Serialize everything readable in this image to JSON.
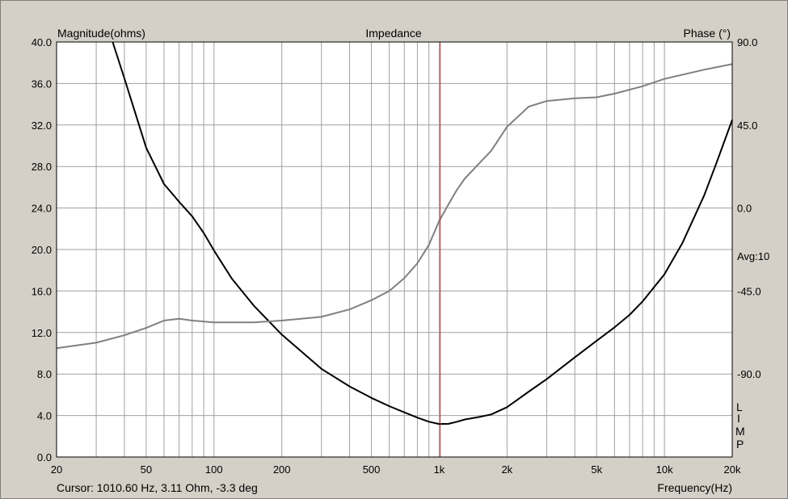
{
  "chart_data": {
    "type": "line",
    "title": "Impedance",
    "ylabel_left": "Magnitude(ohms)",
    "ylabel_right": "Phase (°)",
    "xlabel": "Frequency(Hz)",
    "xscale": "log",
    "xlim": [
      20,
      20000
    ],
    "ylim_left": [
      0,
      40
    ],
    "ylim_right": [
      -135,
      90
    ],
    "grid": true,
    "x_ticks": [
      {
        "value": 20,
        "label": "20"
      },
      {
        "value": 50,
        "label": "50"
      },
      {
        "value": 100,
        "label": "100"
      },
      {
        "value": 200,
        "label": "200"
      },
      {
        "value": 500,
        "label": "500"
      },
      {
        "value": 1000,
        "label": "1k"
      },
      {
        "value": 2000,
        "label": "2k"
      },
      {
        "value": 5000,
        "label": "5k"
      },
      {
        "value": 10000,
        "label": "10k"
      },
      {
        "value": 20000,
        "label": "20k"
      }
    ],
    "y_left_ticks": [
      "0.0",
      "4.0",
      "8.0",
      "12.0",
      "16.0",
      "20.0",
      "24.0",
      "28.0",
      "32.0",
      "36.0",
      "40.0"
    ],
    "y_right_ticks": [
      {
        "value": -90,
        "label": "-90.0"
      },
      {
        "value": -45,
        "label": "-45.0"
      },
      {
        "value": 0,
        "label": "0.0"
      },
      {
        "value": 45,
        "label": "45.0"
      },
      {
        "value": 90,
        "label": "90.0"
      }
    ],
    "series": [
      {
        "axis": "left",
        "color": "#000000",
        "x": [
          35.5,
          40,
          50,
          60,
          70,
          80,
          90,
          100,
          120,
          150,
          200,
          300,
          400,
          500,
          600,
          700,
          800,
          900,
          1000,
          1100,
          1200,
          1300,
          1500,
          1700,
          2000,
          2500,
          3000,
          4000,
          5000,
          6000,
          7000,
          8000,
          10000,
          12000,
          15000,
          17000,
          20000
        ],
        "y": [
          40,
          36.5,
          29.8,
          26.3,
          24.6,
          23.2,
          21.6,
          19.9,
          17.2,
          14.6,
          11.8,
          8.5,
          6.8,
          5.7,
          4.9,
          4.3,
          3.8,
          3.4,
          3.18,
          3.2,
          3.4,
          3.62,
          3.85,
          4.1,
          4.8,
          6.3,
          7.5,
          9.6,
          11.2,
          12.5,
          13.7,
          15,
          17.6,
          20.6,
          25.2,
          28.3,
          32.5
        ]
      },
      {
        "axis": "right",
        "color": "#808080",
        "x": [
          20,
          30,
          40,
          50,
          60,
          70,
          80,
          100,
          120,
          150,
          200,
          300,
          400,
          500,
          600,
          700,
          800,
          900,
          1000,
          1100,
          1200,
          1300,
          1500,
          1700,
          2000,
          2500,
          3000,
          4000,
          5000,
          6000,
          8000,
          10000,
          15000,
          20000
        ],
        "y": [
          -76,
          -73,
          -69,
          -65,
          -61,
          -60,
          -61,
          -62,
          -62,
          -62,
          -61,
          -59,
          -55,
          -50,
          -45,
          -38,
          -30,
          -20,
          -7,
          2,
          10,
          16,
          24,
          31,
          44,
          55,
          58,
          59.5,
          60,
          62,
          66,
          70,
          75,
          78
        ]
      }
    ],
    "cursor": {
      "x": 1010.6
    },
    "cursor_readout": "Cursor: 1010.60 Hz, 3.11 Ohm, -3.3 deg",
    "avg_label": "Avg:10",
    "side_text": [
      "L",
      "I",
      "M",
      "P"
    ]
  }
}
